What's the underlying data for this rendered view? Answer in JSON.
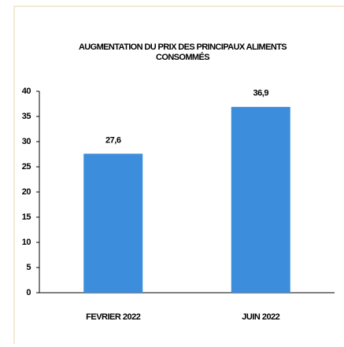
{
  "chart_data": {
    "type": "bar",
    "title": "AUGMENTATION DU PRIX DES PRINCIPAUX ALIMENTS CONSOMMÉS",
    "categories": [
      "FEVRIER 2022",
      "JUIN 2022"
    ],
    "values": [
      27.6,
      36.9
    ],
    "value_labels": [
      "27,6",
      "36,9"
    ],
    "color": "#3c8ddb",
    "ylim": [
      0,
      40
    ],
    "yticks": [
      0,
      5,
      10,
      15,
      20,
      25,
      30,
      35,
      40
    ],
    "grid": false
  }
}
